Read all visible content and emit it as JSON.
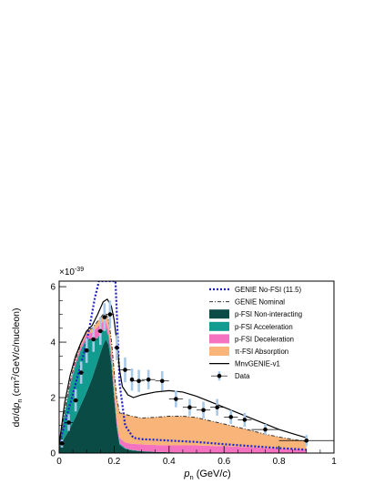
{
  "chart_data": {
    "type": "area",
    "title": "",
    "exponent_label": "×10",
    "exponent_value": "-39",
    "ylabel": "dσ/dp_n (cm²/GeV/c/nucleon)",
    "ylabel_parts": {
      "main": "dσ/d",
      "p": "p",
      "sub": "n",
      "rest": " (cm",
      "sup": "2",
      "tail": "/GeV/",
      "c": "c",
      "end": "/nucleon)"
    },
    "xlabel": "p_n (GeV/c)",
    "xlabel_parts": {
      "p": "p",
      "sub": "n",
      "rest": " (GeV/",
      "c": "c",
      "end": ")"
    },
    "xlim": [
      0,
      1
    ],
    "ylim": [
      0,
      6.2
    ],
    "x_ticks": [
      "0",
      "0.2",
      "0.4",
      "0.6",
      "0.8",
      "1"
    ],
    "y_ticks": [
      "0",
      "2",
      "4",
      "6"
    ],
    "legend_position": "top-right",
    "legend": [
      {
        "label": "GENIE No-FSI (11.5)",
        "style": "dotted-line",
        "color": "#1f1fc8"
      },
      {
        "label": "GENIE Nominal",
        "style": "dashdot-line",
        "color": "#333333"
      },
      {
        "label": "p-FSI Non-interacting",
        "style": "fill",
        "color": "#0b4b45"
      },
      {
        "label": "p-FSI Acceleration",
        "style": "fill",
        "color": "#129c90"
      },
      {
        "label": "p-FSI Deceleration",
        "style": "fill",
        "color": "#f472c0"
      },
      {
        "label": "π-FSI Absorption",
        "style": "fill",
        "color": "#f9b47a"
      },
      {
        "label": "MnvGENIE-v1",
        "style": "solid-line",
        "color": "#000000"
      },
      {
        "label": "Data",
        "style": "marker",
        "color": "#000000"
      }
    ],
    "stack_x": [
      0.0,
      0.02,
      0.04,
      0.06,
      0.08,
      0.1,
      0.12,
      0.14,
      0.16,
      0.17,
      0.18,
      0.19,
      0.2,
      0.21,
      0.22,
      0.24,
      0.26,
      0.3,
      0.35,
      0.4,
      0.45,
      0.5,
      0.55,
      0.6,
      0.65,
      0.7,
      0.75,
      0.8,
      0.85,
      0.9
    ],
    "stacked_series": [
      {
        "name": "p-FSI Non-interacting",
        "color": "#0b4b45",
        "values": [
          0.2,
          0.55,
          0.9,
          1.3,
          1.75,
          2.2,
          2.7,
          3.3,
          3.9,
          4.1,
          3.9,
          3.2,
          2.0,
          0.9,
          0.3,
          0.15,
          0.1,
          0.06,
          0.04,
          0.03,
          0.02,
          0.02,
          0.01,
          0.01,
          0.01,
          0.01,
          0.0,
          0.0,
          0.0,
          0.0
        ]
      },
      {
        "name": "p-FSI Acceleration",
        "color": "#129c90",
        "values": [
          0.05,
          0.9,
          1.55,
          1.9,
          2.0,
          1.95,
          1.35,
          0.85,
          0.55,
          0.4,
          0.3,
          0.22,
          0.15,
          0.1,
          0.05,
          0.03,
          0.02,
          0.01,
          0.0,
          0.0,
          0.0,
          0.0,
          0.0,
          0.0,
          0.0,
          0.0,
          0.0,
          0.0,
          0.0,
          0.0
        ]
      },
      {
        "name": "p-FSI Deceleration",
        "color": "#f472c0",
        "values": [
          0.0,
          0.04,
          0.07,
          0.1,
          0.12,
          0.14,
          0.3,
          0.4,
          0.3,
          0.25,
          0.22,
          0.2,
          0.2,
          0.2,
          0.2,
          0.2,
          0.22,
          0.24,
          0.25,
          0.25,
          0.26,
          0.26,
          0.25,
          0.24,
          0.22,
          0.2,
          0.18,
          0.16,
          0.14,
          0.12
        ]
      },
      {
        "name": "π-FSI Absorption",
        "color": "#f9b47a",
        "values": [
          0.0,
          0.03,
          0.05,
          0.07,
          0.1,
          0.12,
          0.15,
          0.2,
          0.25,
          0.3,
          0.35,
          0.45,
          0.6,
          0.75,
          0.9,
          1.02,
          1.0,
          0.95,
          1.0,
          1.05,
          1.05,
          1.0,
          0.9,
          0.8,
          0.7,
          0.6,
          0.5,
          0.42,
          0.35,
          0.3
        ]
      }
    ],
    "lines": [
      {
        "name": "GENIE No-FSI (11.5)",
        "style": "dotted",
        "color": "#1f1fc8",
        "x": [
          0.0,
          0.03,
          0.06,
          0.09,
          0.11,
          0.13,
          0.14,
          0.145,
          0.205,
          0.21,
          0.22,
          0.24,
          0.27,
          0.3,
          0.35,
          0.4,
          0.5,
          0.6,
          0.7,
          0.8,
          0.9
        ],
        "y": [
          0.3,
          1.4,
          2.5,
          3.6,
          4.5,
          5.6,
          6.0,
          6.2,
          6.2,
          5.0,
          2.5,
          1.0,
          0.55,
          0.5,
          0.48,
          0.45,
          0.4,
          0.32,
          0.25,
          0.18,
          0.12
        ]
      },
      {
        "name": "GENIE Nominal",
        "style": "dashdot",
        "color": "#333333",
        "x": [
          0.0,
          0.02,
          0.04,
          0.06,
          0.08,
          0.1,
          0.12,
          0.14,
          0.16,
          0.17,
          0.18,
          0.19,
          0.2,
          0.21,
          0.22,
          0.24,
          0.26,
          0.3,
          0.35,
          0.4,
          0.45,
          0.5,
          0.55,
          0.6,
          0.65,
          0.7,
          0.75,
          0.8,
          0.85,
          0.9
        ],
        "y": [
          0.25,
          1.52,
          2.57,
          3.37,
          3.97,
          4.41,
          4.5,
          4.75,
          5.0,
          5.05,
          4.77,
          4.07,
          2.95,
          1.95,
          1.45,
          1.4,
          1.34,
          1.26,
          1.29,
          1.33,
          1.33,
          1.28,
          1.16,
          1.05,
          0.93,
          0.81,
          0.68,
          0.58,
          0.49,
          0.42
        ]
      },
      {
        "name": "MnvGENIE-v1",
        "style": "solid",
        "color": "#000000",
        "x": [
          0.0,
          0.02,
          0.04,
          0.06,
          0.08,
          0.1,
          0.12,
          0.14,
          0.16,
          0.175,
          0.19,
          0.2,
          0.21,
          0.22,
          0.23,
          0.25,
          0.27,
          0.3,
          0.35,
          0.4,
          0.45,
          0.5,
          0.55,
          0.6,
          0.65,
          0.7,
          0.75,
          0.8,
          0.85,
          0.9
        ],
        "y": [
          0.3,
          1.8,
          2.8,
          3.5,
          4.0,
          4.4,
          4.6,
          5.0,
          5.45,
          5.55,
          5.3,
          4.8,
          4.0,
          3.0,
          2.4,
          2.1,
          2.0,
          2.1,
          2.2,
          2.25,
          2.2,
          2.05,
          1.85,
          1.65,
          1.45,
          1.25,
          1.05,
          0.85,
          0.7,
          0.55
        ]
      }
    ],
    "data_points": {
      "name": "Data",
      "x": [
        0.01,
        0.035,
        0.06,
        0.08,
        0.1,
        0.125,
        0.15,
        0.165,
        0.185,
        0.21,
        0.24,
        0.265,
        0.29,
        0.325,
        0.375,
        0.425,
        0.475,
        0.525,
        0.575,
        0.625,
        0.675,
        0.75,
        0.9
      ],
      "y": [
        0.35,
        1.1,
        1.9,
        2.9,
        3.7,
        4.1,
        4.4,
        4.9,
        5.0,
        3.8,
        3.0,
        2.65,
        2.6,
        2.65,
        2.6,
        1.95,
        1.65,
        1.55,
        1.65,
        1.3,
        1.2,
        0.85,
        0.45
      ],
      "err": [
        0.15,
        0.3,
        0.4,
        0.4,
        0.45,
        0.45,
        0.5,
        0.5,
        0.5,
        0.45,
        0.45,
        0.4,
        0.4,
        0.35,
        0.35,
        0.3,
        0.3,
        0.3,
        0.3,
        0.25,
        0.25,
        0.2,
        0.2
      ],
      "xerr": [
        0.01,
        0.015,
        0.01,
        0.01,
        0.01,
        0.015,
        0.01,
        0.005,
        0.015,
        0.01,
        0.02,
        0.005,
        0.02,
        0.025,
        0.025,
        0.025,
        0.025,
        0.025,
        0.025,
        0.025,
        0.025,
        0.05,
        0.1
      ]
    }
  }
}
